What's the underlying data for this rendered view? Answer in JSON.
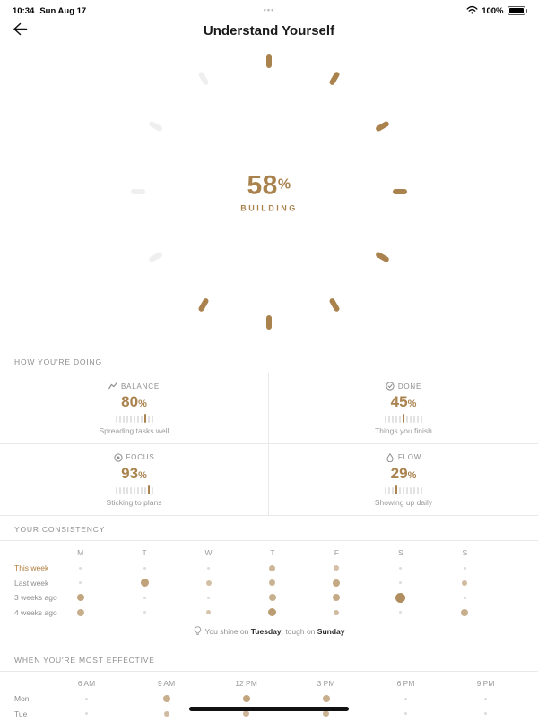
{
  "status_bar": {
    "time": "10:34",
    "date": "Sun Aug 17",
    "battery_percent": "100%",
    "multitask_dots": "•••"
  },
  "header": {
    "title": "Understand Yourself"
  },
  "gauge": {
    "percent": "58",
    "percent_sign": "%",
    "state_label": "BUILDING",
    "ticks_total": 12,
    "ticks_filled": 8,
    "accent_color": "#a9824e",
    "track_color": "#efefef"
  },
  "metrics": {
    "section_title": "HOW YOU'RE DOING",
    "cells": [
      {
        "icon": "trend-line-icon",
        "label": "BALANCE",
        "value": 80,
        "unit": "%",
        "caption": "Spreading tasks well"
      },
      {
        "icon": "check-circle-icon",
        "label": "DONE",
        "value": 45,
        "unit": "%",
        "caption": "Things you finish"
      },
      {
        "icon": "focus-icon",
        "label": "FOCUS",
        "value": 93,
        "unit": "%",
        "caption": "Sticking to plans"
      },
      {
        "icon": "droplet-icon",
        "label": "FLOW",
        "value": 29,
        "unit": "%",
        "caption": "Showing up daily"
      }
    ]
  },
  "consistency": {
    "section_title": "YOUR CONSISTENCY",
    "day_columns": [
      "M",
      "T",
      "W",
      "T",
      "F",
      "S",
      "S"
    ],
    "rows": [
      {
        "label": "This week",
        "highlight": true,
        "values": [
          0.1,
          0.1,
          0.1,
          0.4,
          0.3,
          0.1,
          0.1
        ]
      },
      {
        "label": "Last week",
        "highlight": false,
        "values": [
          0.1,
          0.65,
          0.3,
          0.45,
          0.55,
          0.1,
          0.35
        ]
      },
      {
        "label": "3 weeks ago",
        "highlight": false,
        "values": [
          0.6,
          0.1,
          0.1,
          0.5,
          0.55,
          0.85,
          0.1
        ]
      },
      {
        "label": "4 weeks ago",
        "highlight": false,
        "values": [
          0.5,
          0.1,
          0.25,
          0.7,
          0.35,
          0.1,
          0.5
        ]
      }
    ],
    "insight": {
      "icon": "lightbulb-icon",
      "prefix": "You shine on",
      "best_day": "Tuesday",
      "connector": ", tough on",
      "worst_day": "Sunday"
    }
  },
  "effective": {
    "section_title": "WHEN YOU'RE MOST EFFECTIVE",
    "time_columns": [
      "6 AM",
      "9 AM",
      "12 PM",
      "3 PM",
      "6 PM",
      "9 PM"
    ],
    "rows": [
      {
        "label": "Mon",
        "values": [
          0.1,
          0.5,
          0.6,
          0.5,
          0.1,
          0.1
        ]
      },
      {
        "label": "Tue",
        "values": [
          0.1,
          0.35,
          0.4,
          0.45,
          0.1,
          0.1
        ]
      }
    ]
  }
}
